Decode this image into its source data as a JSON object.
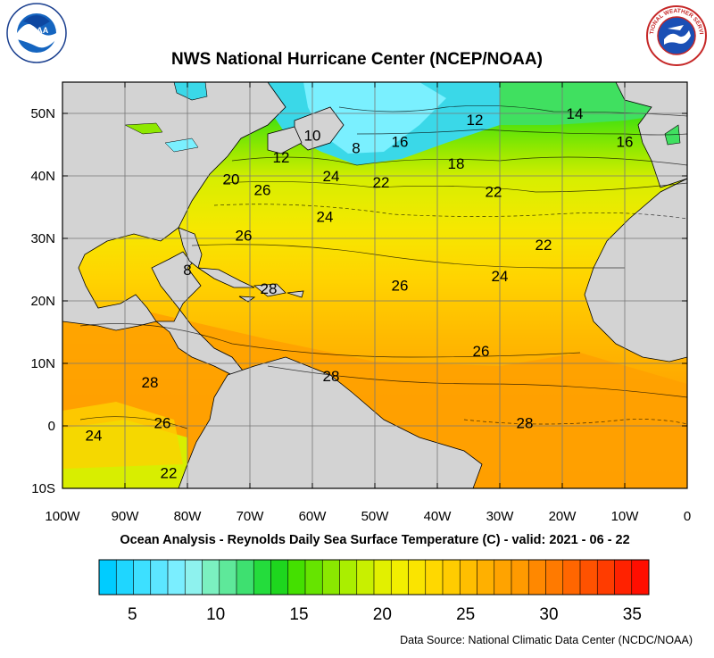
{
  "header": {
    "title": "NWS National Hurricane Center (NCEP/NOAA)",
    "noaa_logo_label": "NOAA",
    "nws_logo_label": "NATIONAL WEATHER SERVICE"
  },
  "map": {
    "region": "Atlantic Ocean",
    "lon_range": [
      -100,
      0
    ],
    "lat_range": [
      -10,
      55
    ],
    "lat_labels": [
      "50N",
      "40N",
      "30N",
      "20N",
      "10N",
      "0",
      "10S"
    ],
    "lon_labels": [
      "100W",
      "90W",
      "80W",
      "70W",
      "60W",
      "50W",
      "40W",
      "30W",
      "20W",
      "10W",
      "0"
    ],
    "contour_labels": [
      {
        "text": "12",
        "lon": -34,
        "lat": 49
      },
      {
        "text": "14",
        "lon": -18,
        "lat": 50
      },
      {
        "text": "16",
        "lon": -10,
        "lat": 45.5
      },
      {
        "text": "10",
        "lon": -60,
        "lat": 46.5
      },
      {
        "text": "8",
        "lon": -53,
        "lat": 44.5
      },
      {
        "text": "16",
        "lon": -46,
        "lat": 45.5
      },
      {
        "text": "12",
        "lon": -65,
        "lat": 43
      },
      {
        "text": "18",
        "lon": -37,
        "lat": 42
      },
      {
        "text": "20",
        "lon": -73,
        "lat": 39.5
      },
      {
        "text": "24",
        "lon": -57,
        "lat": 40
      },
      {
        "text": "22",
        "lon": -49,
        "lat": 39
      },
      {
        "text": "26",
        "lon": -68,
        "lat": 37.8
      },
      {
        "text": "22",
        "lon": -31,
        "lat": 37.5
      },
      {
        "text": "24",
        "lon": -58,
        "lat": 33.5
      },
      {
        "text": "26",
        "lon": -71,
        "lat": 30.5
      },
      {
        "text": "22",
        "lon": -23,
        "lat": 29
      },
      {
        "text": "8",
        "lon": -80,
        "lat": 25
      },
      {
        "text": "28",
        "lon": -67,
        "lat": 22
      },
      {
        "text": "26",
        "lon": -46,
        "lat": 22.5
      },
      {
        "text": "24",
        "lon": -30,
        "lat": 24
      },
      {
        "text": "26",
        "lon": -33,
        "lat": 12
      },
      {
        "text": "28",
        "lon": -57,
        "lat": 8
      },
      {
        "text": "28",
        "lon": -86,
        "lat": 7
      },
      {
        "text": "26",
        "lon": -84,
        "lat": 0.5
      },
      {
        "text": "28",
        "lon": -26,
        "lat": 0.5
      },
      {
        "text": "24",
        "lon": -95,
        "lat": -1.5
      },
      {
        "text": "22",
        "lon": -83,
        "lat": -7.5
      }
    ]
  },
  "subtitle": "Ocean Analysis - Reynolds Daily Sea Surface Temperature (C) - valid: 2021 - 06 - 22",
  "colorbar": {
    "colors": [
      "#00ccff",
      "#1fd6ff",
      "#3de0ff",
      "#5ce6ff",
      "#7aeeff",
      "#8ef2ee",
      "#7bf0c0",
      "#5ee89a",
      "#3ee070",
      "#24dc3c",
      "#1ed61e",
      "#44e000",
      "#66e400",
      "#8ae800",
      "#aaee00",
      "#c8f000",
      "#e2f000",
      "#f2ee00",
      "#fae400",
      "#ffd800",
      "#ffcc00",
      "#ffbe00",
      "#ffb000",
      "#ffa300",
      "#ff9a00",
      "#ff8800",
      "#ff7a00",
      "#ff6600",
      "#ff5200",
      "#ff3c00",
      "#ff2200",
      "#ff0e00"
    ],
    "tick_labels": [
      "5",
      "10",
      "15",
      "20",
      "25",
      "30",
      "35"
    ],
    "tick_values": [
      5,
      10,
      15,
      20,
      25,
      30,
      35
    ],
    "range": [
      3,
      36
    ]
  },
  "footer": {
    "source": "Data Source: National Climatic Data Center (NCDC/NOAA)"
  }
}
